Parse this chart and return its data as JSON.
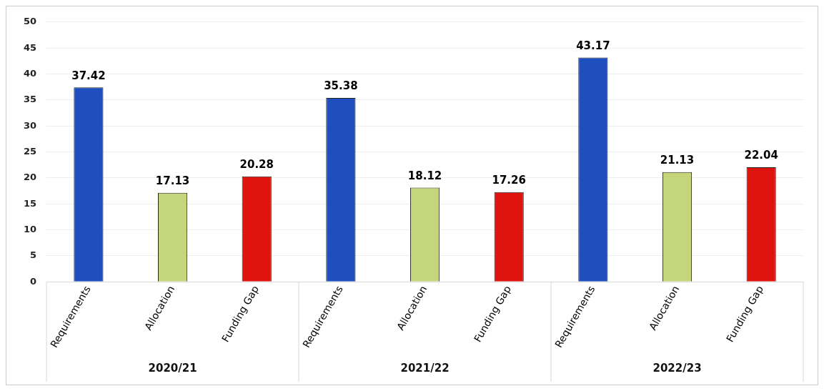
{
  "chart_data": {
    "type": "bar",
    "categories": [
      "Requirements",
      "Allocation",
      "Funding Gap",
      "Requirements",
      "Allocation",
      "Funding Gap",
      "Requirements",
      "Allocation",
      "Funding Gap"
    ],
    "series": [
      {
        "values": [
          37.42,
          17.13,
          20.28,
          35.38,
          18.12,
          17.26,
          43.17,
          21.13,
          22.04
        ],
        "colors": [
          "#1f4fbf",
          "#c5d57a",
          "#e0140f",
          "#1f4fbf",
          "#c5d57a",
          "#e0140f",
          "#1f4fbf",
          "#c5d57a",
          "#e0140f"
        ]
      }
    ],
    "ylim": [
      0,
      50
    ],
    "yticks": [
      0,
      5,
      10,
      15,
      20,
      25,
      30,
      35,
      40,
      45,
      50
    ],
    "grid": "y",
    "data_labels": true,
    "legend": false,
    "annotations": [
      "2020/21",
      "2021/22",
      "2022/23"
    ]
  }
}
